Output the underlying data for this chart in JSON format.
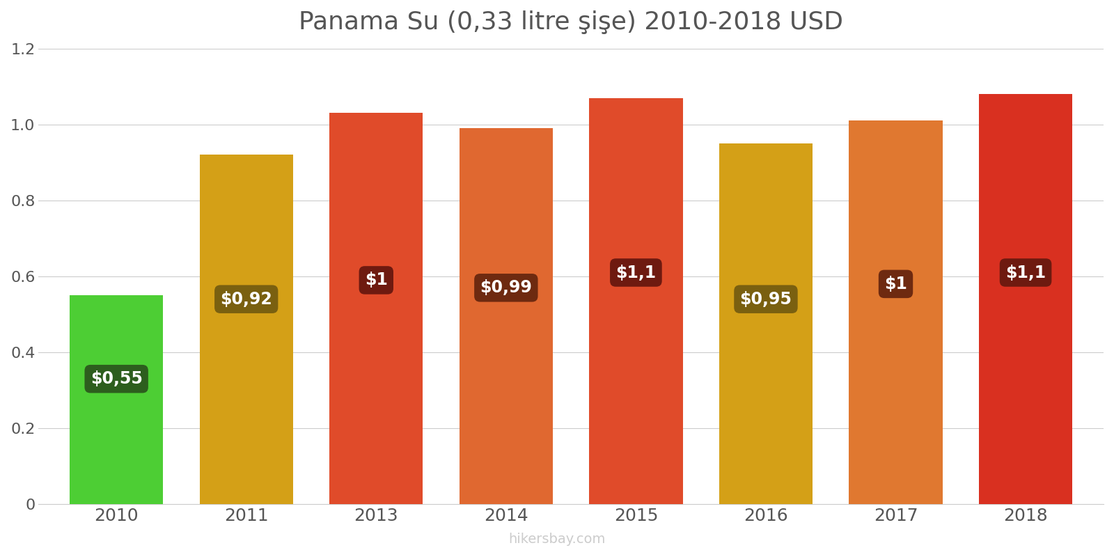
{
  "years": [
    "2010",
    "2011",
    "2013",
    "2014",
    "2015",
    "2016",
    "2017",
    "2018"
  ],
  "values": [
    0.55,
    0.92,
    1.03,
    0.99,
    1.07,
    0.95,
    1.01,
    1.08
  ],
  "labels": [
    "$0,55",
    "$0,92",
    "$1",
    "$0,99",
    "$1,1",
    "$0,95",
    "$1",
    "$1,1"
  ],
  "bar_colors": [
    "#4dce34",
    "#d4a017",
    "#e04b2a",
    "#e06830",
    "#e04b2a",
    "#d4a017",
    "#e07830",
    "#d93020"
  ],
  "label_bg_colors": [
    "#2d5e1e",
    "#7a6010",
    "#6e1a10",
    "#6e2a10",
    "#6e1a10",
    "#7a6010",
    "#6e2a10",
    "#6e1a10"
  ],
  "title": "Panama Su (0,33 litre şişe) 2010-2018 USD",
  "title_fontsize": 26,
  "ylim": [
    0,
    1.2
  ],
  "yticks": [
    0,
    0.2,
    0.4,
    0.6,
    0.8,
    1.0,
    1.2
  ],
  "label_y_positions": [
    0.33,
    0.54,
    0.59,
    0.57,
    0.61,
    0.54,
    0.58,
    0.61
  ],
  "watermark": "hikersbay.com",
  "background_color": "#ffffff"
}
